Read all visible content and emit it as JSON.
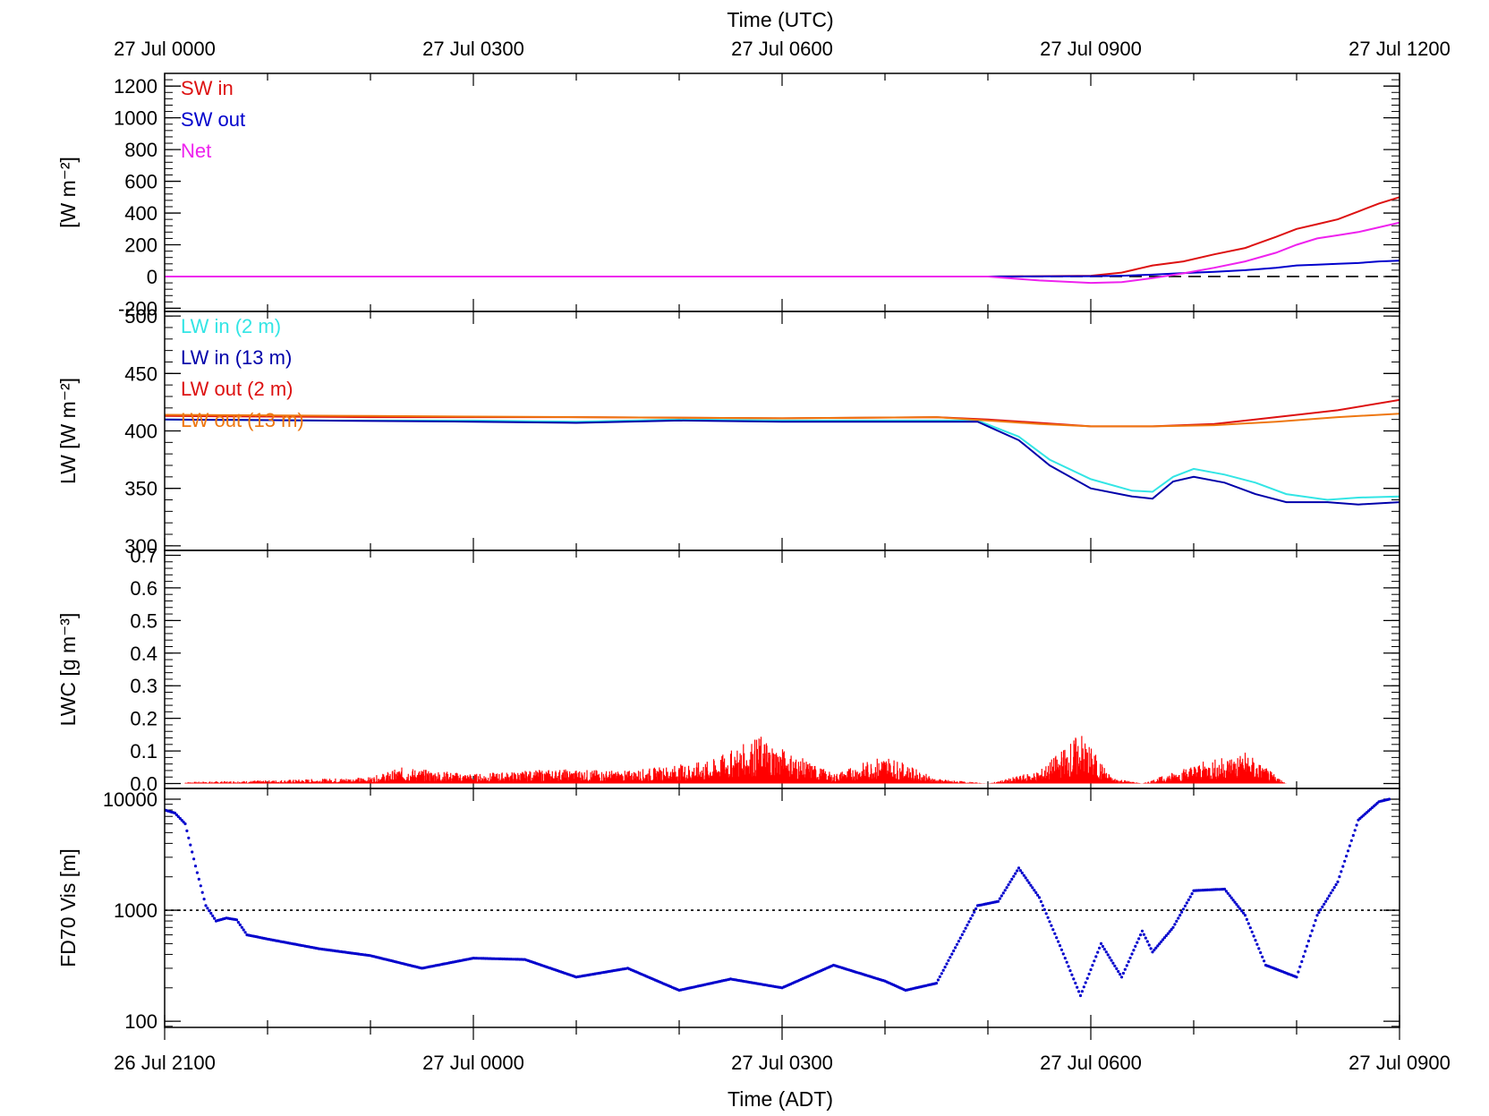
{
  "chart_data": {
    "type": "line",
    "top_axis": {
      "title": "Time (UTC)",
      "ticks": [
        {
          "x": 0,
          "label": "27 Jul 0000"
        },
        {
          "x": 3,
          "label": "27 Jul 0300"
        },
        {
          "x": 6,
          "label": "27 Jul 0600"
        },
        {
          "x": 9,
          "label": "27 Jul 0900"
        },
        {
          "x": 12,
          "label": "27 Jul 1200"
        }
      ]
    },
    "bottom_axis": {
      "title": "Time (ADT)",
      "ticks": [
        {
          "x": 0,
          "label": "26 Jul 2100"
        },
        {
          "x": 3,
          "label": "27 Jul 0000"
        },
        {
          "x": 6,
          "label": "27 Jul 0300"
        },
        {
          "x": 9,
          "label": "27 Jul 0600"
        },
        {
          "x": 12,
          "label": "27 Jul 0900"
        }
      ]
    },
    "xlim": [
      0,
      12
    ],
    "panels": [
      {
        "id": "sw",
        "ylabel": "[W m⁻²]",
        "ylim": [
          -220,
          1280
        ],
        "yticks": [
          {
            "v": -200,
            "label": "-200"
          },
          {
            "v": 0,
            "label": "0"
          },
          {
            "v": 200,
            "label": "200"
          },
          {
            "v": 400,
            "label": "400"
          },
          {
            "v": 600,
            "label": "600"
          },
          {
            "v": 800,
            "label": "800"
          },
          {
            "v": 1000,
            "label": "1000"
          },
          {
            "v": 1200,
            "label": "1200"
          }
        ],
        "reference_line": {
          "value": 0,
          "style": "dashed",
          "color": "#000000"
        },
        "series": [
          {
            "name": "SW in",
            "color": "#dd1111",
            "points": [
              [
                0,
                0
              ],
              [
                8,
                0
              ],
              [
                9,
                5
              ],
              [
                9.3,
                25
              ],
              [
                9.6,
                70
              ],
              [
                9.9,
                95
              ],
              [
                10.2,
                140
              ],
              [
                10.5,
                180
              ],
              [
                10.8,
                250
              ],
              [
                11,
                300
              ],
              [
                11.2,
                330
              ],
              [
                11.4,
                360
              ],
              [
                11.6,
                410
              ],
              [
                11.8,
                460
              ],
              [
                12,
                500
              ]
            ]
          },
          {
            "name": "SW out",
            "color": "#0000cc",
            "points": [
              [
                0,
                0
              ],
              [
                8,
                0
              ],
              [
                9,
                2
              ],
              [
                9.3,
                5
              ],
              [
                9.6,
                12
              ],
              [
                9.9,
                22
              ],
              [
                10.2,
                30
              ],
              [
                10.5,
                40
              ],
              [
                10.8,
                55
              ],
              [
                11,
                70
              ],
              [
                11.2,
                75
              ],
              [
                11.4,
                80
              ],
              [
                11.6,
                85
              ],
              [
                11.8,
                95
              ],
              [
                12,
                100
              ]
            ]
          },
          {
            "name": "Net",
            "color": "#ee22ee",
            "points": [
              [
                0,
                0
              ],
              [
                8,
                0
              ],
              [
                8.5,
                -25
              ],
              [
                9,
                -40
              ],
              [
                9.3,
                -35
              ],
              [
                9.6,
                -10
              ],
              [
                9.9,
                20
              ],
              [
                10.2,
                55
              ],
              [
                10.5,
                95
              ],
              [
                10.8,
                150
              ],
              [
                11,
                200
              ],
              [
                11.2,
                240
              ],
              [
                11.4,
                260
              ],
              [
                11.6,
                280
              ],
              [
                11.8,
                310
              ],
              [
                12,
                340
              ]
            ]
          }
        ]
      },
      {
        "id": "lw",
        "ylabel": "LW [W m⁻²]",
        "ylim": [
          296,
          504
        ],
        "yticks": [
          {
            "v": 300,
            "label": "300"
          },
          {
            "v": 350,
            "label": "350"
          },
          {
            "v": 400,
            "label": "400"
          },
          {
            "v": 450,
            "label": "450"
          },
          {
            "v": 500,
            "label": "500"
          }
        ],
        "series": [
          {
            "name": "LW in (2 m)",
            "color": "#33e5e5",
            "points": [
              [
                0,
                410
              ],
              [
                1.5,
                409
              ],
              [
                3,
                409
              ],
              [
                4,
                408
              ],
              [
                5,
                410
              ],
              [
                6,
                409
              ],
              [
                7,
                409
              ],
              [
                7.9,
                409
              ],
              [
                8.3,
                395
              ],
              [
                8.6,
                375
              ],
              [
                9,
                358
              ],
              [
                9.4,
                348
              ],
              [
                9.6,
                347
              ],
              [
                9.8,
                360
              ],
              [
                10,
                367
              ],
              [
                10.3,
                362
              ],
              [
                10.6,
                355
              ],
              [
                10.9,
                345
              ],
              [
                11.3,
                340
              ],
              [
                11.6,
                342
              ],
              [
                12,
                343
              ]
            ]
          },
          {
            "name": "LW in (13 m)",
            "color": "#0000aa",
            "points": [
              [
                0,
                410
              ],
              [
                1.5,
                409
              ],
              [
                3,
                408
              ],
              [
                4,
                407
              ],
              [
                5,
                409
              ],
              [
                6,
                408
              ],
              [
                7,
                408
              ],
              [
                7.9,
                408
              ],
              [
                8.3,
                392
              ],
              [
                8.6,
                370
              ],
              [
                9,
                350
              ],
              [
                9.4,
                343
              ],
              [
                9.6,
                341
              ],
              [
                9.8,
                356
              ],
              [
                10,
                360
              ],
              [
                10.3,
                355
              ],
              [
                10.6,
                345
              ],
              [
                10.9,
                338
              ],
              [
                11.3,
                338
              ],
              [
                11.6,
                336
              ],
              [
                12,
                338
              ]
            ]
          },
          {
            "name": "LW out (2 m)",
            "color": "#dd1111",
            "points": [
              [
                0,
                413
              ],
              [
                2,
                412
              ],
              [
                4,
                412
              ],
              [
                6,
                411
              ],
              [
                7.5,
                412
              ],
              [
                8,
                410
              ],
              [
                8.5,
                407
              ],
              [
                9,
                404
              ],
              [
                9.6,
                404
              ],
              [
                10.2,
                406
              ],
              [
                10.8,
                412
              ],
              [
                11.4,
                418
              ],
              [
                12,
                427
              ]
            ]
          },
          {
            "name": "LW out (13 m)",
            "color": "#ee7711",
            "points": [
              [
                0,
                414
              ],
              [
                2,
                413
              ],
              [
                4,
                412
              ],
              [
                6,
                411
              ],
              [
                7.5,
                412
              ],
              [
                8,
                409
              ],
              [
                8.5,
                406
              ],
              [
                9,
                404
              ],
              [
                9.6,
                404
              ],
              [
                10.2,
                405
              ],
              [
                10.8,
                408
              ],
              [
                11.4,
                412
              ],
              [
                12,
                415
              ]
            ]
          }
        ]
      },
      {
        "id": "lwc",
        "ylabel": "LWC [g m⁻³]",
        "ylim": [
          -0.015,
          0.715
        ],
        "yticks": [
          {
            "v": 0.0,
            "label": "0.0"
          },
          {
            "v": 0.1,
            "label": "0.1"
          },
          {
            "v": 0.2,
            "label": "0.2"
          },
          {
            "v": 0.3,
            "label": "0.3"
          },
          {
            "v": 0.4,
            "label": "0.4"
          },
          {
            "v": 0.5,
            "label": "0.5"
          },
          {
            "v": 0.6,
            "label": "0.6"
          },
          {
            "v": 0.7,
            "label": "0.7"
          }
        ],
        "series": [
          {
            "name": "",
            "color": "#ff0000",
            "points": [
              [
                0.2,
                0.005
              ],
              [
                1,
                0.01
              ],
              [
                2,
                0.02
              ],
              [
                2.3,
                0.05
              ],
              [
                3,
                0.03
              ],
              [
                3.8,
                0.045
              ],
              [
                4.5,
                0.04
              ],
              [
                5.3,
                0.07
              ],
              [
                5.8,
                0.15
              ],
              [
                6.0,
                0.11
              ],
              [
                6.5,
                0.03
              ],
              [
                7.0,
                0.09
              ],
              [
                7.5,
                0.015
              ],
              [
                8.0,
                0.0
              ],
              [
                8.5,
                0.04
              ],
              [
                8.9,
                0.16
              ],
              [
                9.2,
                0.02
              ],
              [
                9.5,
                0.0
              ],
              [
                10.0,
                0.06
              ],
              [
                10.5,
                0.1
              ],
              [
                10.9,
                0.0
              ]
            ]
          }
        ]
      },
      {
        "id": "vis",
        "ylabel": "FD70 Vis [m]",
        "yscale": "log",
        "ylim": [
          88,
          12500
        ],
        "yticks": [
          {
            "v": 100,
            "label": "100"
          },
          {
            "v": 1000,
            "label": "1000"
          },
          {
            "v": 10000,
            "label": "10000"
          }
        ],
        "reference_line": {
          "value": 1000,
          "style": "dotted",
          "color": "#000000"
        },
        "series": [
          {
            "name": "",
            "color": "#0000cc",
            "points": [
              [
                0,
                8000
              ],
              [
                0.1,
                7500
              ],
              [
                0.2,
                6000
              ],
              [
                0.3,
                2500
              ],
              [
                0.4,
                1100
              ],
              [
                0.5,
                800
              ],
              [
                0.6,
                850
              ],
              [
                0.7,
                820
              ],
              [
                0.8,
                600
              ],
              [
                1,
                550
              ],
              [
                1.5,
                450
              ],
              [
                2,
                390
              ],
              [
                2.5,
                300
              ],
              [
                3,
                370
              ],
              [
                3.5,
                360
              ],
              [
                4,
                250
              ],
              [
                4.5,
                300
              ],
              [
                5,
                190
              ],
              [
                5.5,
                240
              ],
              [
                6,
                200
              ],
              [
                6.5,
                320
              ],
              [
                7,
                230
              ],
              [
                7.2,
                190
              ],
              [
                7.5,
                220
              ],
              [
                7.9,
                1100
              ],
              [
                8.1,
                1200
              ],
              [
                8.3,
                2400
              ],
              [
                8.5,
                1300
              ],
              [
                8.7,
                480
              ],
              [
                8.9,
                170
              ],
              [
                9.1,
                500
              ],
              [
                9.3,
                250
              ],
              [
                9.5,
                650
              ],
              [
                9.6,
                420
              ],
              [
                9.8,
                700
              ],
              [
                10,
                1500
              ],
              [
                10.3,
                1550
              ],
              [
                10.5,
                900
              ],
              [
                10.7,
                320
              ],
              [
                11,
                250
              ],
              [
                11.2,
                900
              ],
              [
                11.4,
                1800
              ],
              [
                11.6,
                6500
              ],
              [
                11.8,
                9500
              ],
              [
                11.9,
                10000
              ]
            ]
          }
        ]
      }
    ]
  }
}
